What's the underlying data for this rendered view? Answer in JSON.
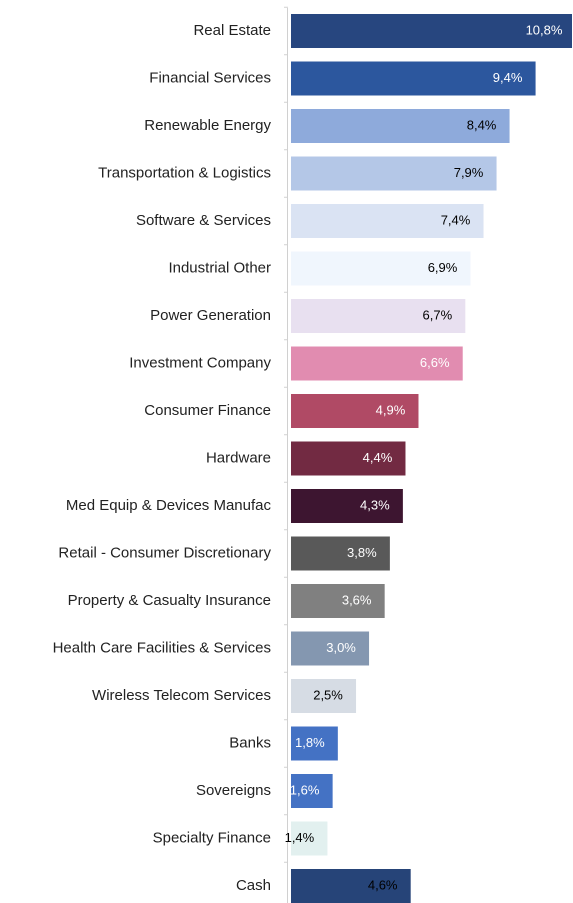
{
  "chart_data": {
    "type": "bar",
    "orientation": "horizontal",
    "categories": [
      "Real Estate",
      "Financial Services",
      "Renewable Energy",
      "Transportation & Logistics",
      "Software & Services",
      "Industrial Other",
      "Power Generation",
      "Investment Company",
      "Consumer Finance",
      "Hardware",
      "Med Equip & Devices Manufac",
      "Retail - Consumer Discretionary",
      "Property & Casualty Insurance",
      "Health Care Facilities & Services",
      "Wireless Telecom Services",
      "Banks",
      "Sovereigns",
      "Specialty Finance",
      "Cash"
    ],
    "values": [
      10.8,
      9.4,
      8.4,
      7.9,
      7.4,
      6.9,
      6.7,
      6.6,
      4.9,
      4.4,
      4.3,
      3.8,
      3.6,
      3.0,
      2.5,
      1.8,
      1.6,
      1.4,
      4.6
    ],
    "value_labels": [
      "10,8%",
      "9,4%",
      "8,4%",
      "7,9%",
      "7,4%",
      "6,9%",
      "6,7%",
      "6,6%",
      "4,9%",
      "4,4%",
      "4,3%",
      "3,8%",
      "3,6%",
      "3,0%",
      "2,5%",
      "1,8%",
      "1,6%",
      "1,4%",
      "4,6%"
    ],
    "colors": [
      "#27467f",
      "#2c579e",
      "#8eaadb",
      "#b4c7e7",
      "#dae3f3",
      "#f0f6fd",
      "#e8e0f0",
      "#e18cb0",
      "#b04a65",
      "#722a42",
      "#3d1530",
      "#595959",
      "#808080",
      "#8497b0",
      "#d6dce4",
      "#4472c4",
      "#4472c4",
      "#e2f0ef",
      "#264478"
    ],
    "label_colors": [
      "#ffffff",
      "#ffffff",
      "#000000",
      "#000000",
      "#000000",
      "#000000",
      "#000000",
      "#ffffff",
      "#ffffff",
      "#ffffff",
      "#ffffff",
      "#ffffff",
      "#ffffff",
      "#ffffff",
      "#000000",
      "#ffffff",
      "#ffffff",
      "#000000",
      "#000000"
    ]
  }
}
